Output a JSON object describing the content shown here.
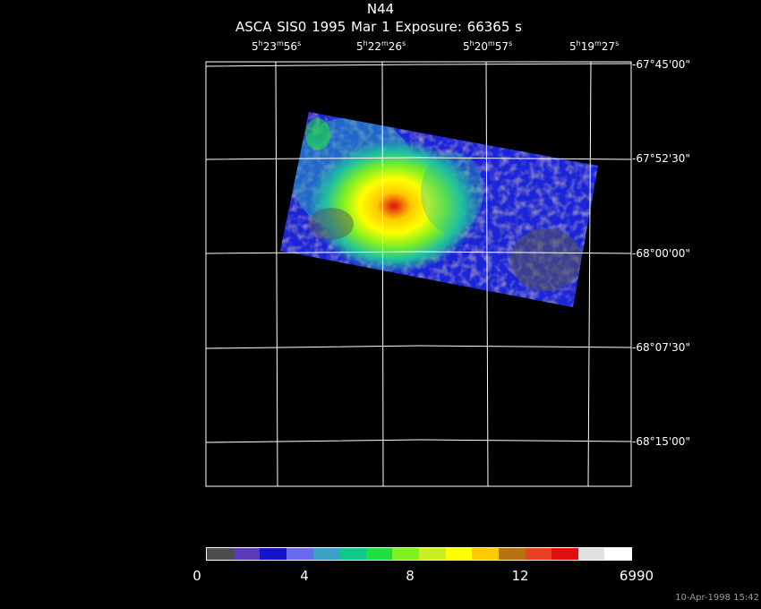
{
  "header": {
    "title": "N44",
    "subtitle": "ASCA SIS0   1995 Mar  1    Exposure: 66365 s"
  },
  "ra_labels": [
    {
      "h": "5",
      "m": "23",
      "s": "56"
    },
    {
      "h": "5",
      "m": "22",
      "s": "26"
    },
    {
      "h": "5",
      "m": "20",
      "s": "57"
    },
    {
      "h": "5",
      "m": "19",
      "s": "27"
    }
  ],
  "dec_labels": [
    "-67°45'00\"",
    "-67°52'30\"",
    "-68°00'00\"",
    "-68°07'30\"",
    "-68°15'00\""
  ],
  "colorbar": {
    "tick_labels": [
      "0",
      "4",
      "8",
      "12",
      "6990"
    ],
    "colors": [
      "#4d4d4d",
      "#5a3ab8",
      "#1414c8",
      "#6a6af0",
      "#3aa0c8",
      "#10c888",
      "#20e040",
      "#80f020",
      "#c8f020",
      "#ffff00",
      "#ffc800",
      "#b87010",
      "#e84020",
      "#e01010",
      "#e0e0e0",
      "#ffffff"
    ]
  },
  "timestamp": "10-Apr-1998 15:42"
}
